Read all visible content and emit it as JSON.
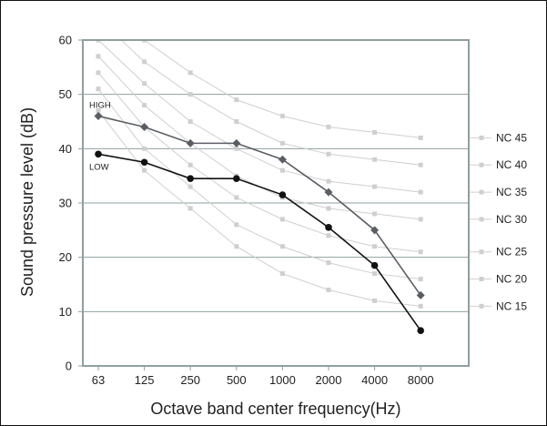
{
  "chart_data": {
    "type": "line",
    "xlabel": "Octave band center frequency(Hz)",
    "ylabel": "Sound pressure level (dB)",
    "categories": [
      "63",
      "125",
      "250",
      "500",
      "1000",
      "2000",
      "4000",
      "8000"
    ],
    "ylim": [
      0,
      60
    ],
    "yticks": [
      0,
      10,
      20,
      30,
      40,
      50,
      60
    ],
    "grid": "horizontal",
    "series": [
      {
        "name": "HIGH",
        "color": "#5a5e64",
        "marker": "diamond",
        "values": [
          46,
          44,
          41,
          41,
          38,
          32,
          25,
          13
        ]
      },
      {
        "name": "LOW",
        "color": "#111111",
        "marker": "circle",
        "values": [
          39,
          37.5,
          34.5,
          34.5,
          31.5,
          25.5,
          18.5,
          6.5
        ]
      }
    ],
    "reference_curves": [
      {
        "name": "NC 15",
        "values": [
          47,
          36,
          29,
          22,
          17,
          14,
          12,
          11
        ]
      },
      {
        "name": "NC 20",
        "values": [
          51,
          40,
          33,
          26,
          22,
          19,
          17,
          16
        ]
      },
      {
        "name": "NC 25",
        "values": [
          54,
          44,
          37,
          31,
          27,
          24,
          22,
          21
        ]
      },
      {
        "name": "NC 30",
        "values": [
          57,
          48,
          41,
          35,
          31,
          29,
          28,
          27
        ]
      },
      {
        "name": "NC 35",
        "values": [
          60,
          52,
          45,
          40,
          36,
          34,
          33,
          32
        ]
      },
      {
        "name": "NC 40",
        "values": [
          64,
          56,
          50,
          45,
          41,
          39,
          38,
          37
        ]
      },
      {
        "name": "NC 45",
        "values": [
          67,
          60,
          54,
          49,
          46,
          44,
          43,
          42
        ]
      }
    ],
    "colors": {
      "axis": "#8ea0a0",
      "grid": "#8ea0a0",
      "reference": "#cfcfcf"
    }
  }
}
